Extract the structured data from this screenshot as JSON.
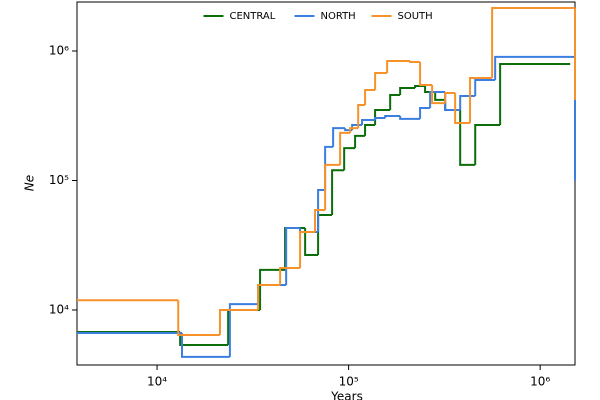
{
  "chart_data": {
    "type": "line",
    "step": true,
    "log_x": true,
    "log_y": true,
    "legend": "upper center",
    "x_label": "Years",
    "y_label": "Ne",
    "xlim": [
      3820,
      1520000
    ],
    "ylim": [
      3760,
      2390000
    ],
    "xticks": [
      {
        "value": 10000,
        "label": "10⁴"
      },
      {
        "value": 100000,
        "label": "10⁵"
      },
      {
        "value": 1000000,
        "label": "10⁶"
      }
    ],
    "yticks": [
      {
        "value": 10000,
        "label": "10⁴"
      },
      {
        "value": 100000,
        "label": "10⁵"
      },
      {
        "value": 1000000,
        "label": "10⁶"
      }
    ],
    "series": [
      {
        "name": "CENTRAL",
        "color": "#0b6e0b",
        "x": [
          3820,
          13200,
          23500,
          34500,
          46600,
          59300,
          69300,
          82000,
          94800,
          108100,
          121900,
          137500,
          164800,
          185800,
          222300,
          250700,
          283100,
          319200,
          382300,
          458100,
          618000,
          1435000
        ],
        "values": [
          6760,
          5370,
          10000,
          20400,
          43000,
          26600,
          54200,
          120000,
          178000,
          221000,
          268000,
          350000,
          457000,
          518000,
          537000,
          482000,
          419000,
          350000,
          132000,
          268000,
          794000,
          794000
        ]
      },
      {
        "name": "NORTH",
        "color": "#3a7fe0",
        "x": [
          3820,
          13500,
          24000,
          33700,
          47200,
          55800,
          69300,
          75400,
          83000,
          95900,
          104300,
          117500,
          137500,
          155200,
          185800,
          236100,
          266400,
          319200,
          382300,
          458100,
          582100,
          1435000,
          1520000
        ],
        "values": [
          6640,
          4340,
          11100,
          15600,
          43000,
          40000,
          84500,
          182000,
          254000,
          245000,
          268000,
          293000,
          304000,
          315000,
          299000,
          363000,
          482000,
          350000,
          449000,
          597000,
          900000,
          900000,
          100000
        ]
      },
      {
        "name": "SOUTH",
        "color": "#f7922a",
        "x": [
          3820,
          12900,
          21300,
          33700,
          43900,
          55800,
          66800,
          75400,
          90300,
          101900,
          112200,
          121900,
          137500,
          158900,
          209500,
          236100,
          272900,
          319200,
          359900,
          430500,
          561200,
          1435000,
          1520000
        ],
        "values": [
          11900,
          6410,
          10000,
          15600,
          21100,
          40000,
          59200,
          132000,
          233000,
          254000,
          383000,
          500000,
          676000,
          838000,
          822000,
          546000,
          396000,
          474000,
          278000,
          619000,
          2150000,
          2150000,
          419000
        ]
      }
    ]
  }
}
